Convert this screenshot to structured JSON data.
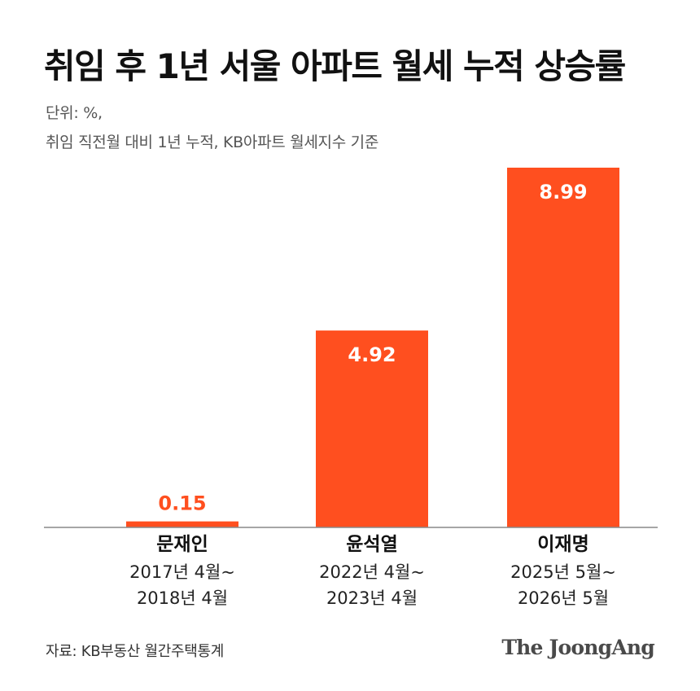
{
  "header": {
    "title": "취임 후 1년 서울 아파트 월세 누적 상승률",
    "subtitle_line1": "단위: %,",
    "subtitle_line2": "취임 직전월 대비 1년 누적, KB아파트 월세지수 기준"
  },
  "footer": {
    "source": "자료: KB부동산 월간주택통계",
    "logo": "The JoongAng"
  },
  "colors": {
    "bar": "#ff4f1f",
    "label_outside": "#ff4f1f",
    "label_inside": "#ffffff",
    "baseline": "#888888"
  },
  "chart_data": {
    "type": "bar",
    "categories": [
      "문재인",
      "윤석열",
      "이재명"
    ],
    "periods": [
      [
        "2017년 4월~",
        "2018년 4월"
      ],
      [
        "2022년 4월~",
        "2023년 4월"
      ],
      [
        "2025년 5월~",
        "2026년 5월"
      ]
    ],
    "values": [
      0.15,
      4.92,
      8.99
    ],
    "value_labels": [
      "0.15",
      "4.92",
      "8.99"
    ],
    "ylim": [
      0,
      8.99
    ],
    "grid": false,
    "legend": "none"
  }
}
